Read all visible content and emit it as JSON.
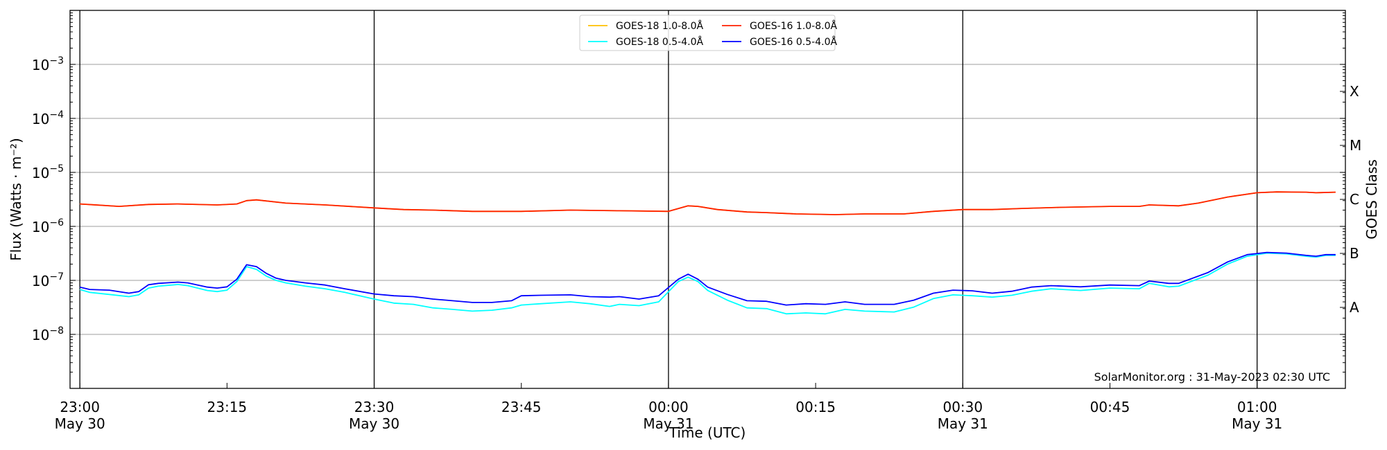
{
  "chart_data": {
    "type": "line",
    "title": "",
    "xlabel": "Time (UTC)",
    "ylabel": "Flux (Watts · m⁻²)",
    "right_ylabel": "GOES Class",
    "yscale": "log",
    "ylim": [
      1e-09,
      0.01
    ],
    "xlim": [
      "22:59",
      "01:09"
    ],
    "grid": "horizontal at decades",
    "legend_position": "top-center",
    "watermark": "SolarMonitor.org : 31-May-2023 02:30 UTC",
    "y_ticks": [
      {
        "exp": -3,
        "label": "10",
        "sup": "−3"
      },
      {
        "exp": -4,
        "label": "10",
        "sup": "−4"
      },
      {
        "exp": -5,
        "label": "10",
        "sup": "−5"
      },
      {
        "exp": -6,
        "label": "10",
        "sup": "−6"
      },
      {
        "exp": -7,
        "label": "10",
        "sup": "−7"
      },
      {
        "exp": -8,
        "label": "10",
        "sup": "−8"
      }
    ],
    "class_ticks": [
      {
        "label": "X",
        "flux_exp": -3.5
      },
      {
        "label": "M",
        "flux_exp": -4.5
      },
      {
        "label": "C",
        "flux_exp": -5.5
      },
      {
        "label": "B",
        "flux_exp": -6.5
      },
      {
        "label": "A",
        "flux_exp": -7.5
      }
    ],
    "x_ticks": [
      {
        "time": "23:00",
        "label": "23:00",
        "date": "May 30",
        "vline": true
      },
      {
        "time": "23:15",
        "label": "23:15",
        "date": "",
        "vline": false
      },
      {
        "time": "23:30",
        "label": "23:30",
        "date": "May 30",
        "vline": true
      },
      {
        "time": "23:45",
        "label": "23:45",
        "date": "",
        "vline": false
      },
      {
        "time": "00:00",
        "label": "00:00",
        "date": "May 31",
        "vline": true
      },
      {
        "time": "00:15",
        "label": "00:15",
        "date": "",
        "vline": false
      },
      {
        "time": "00:30",
        "label": "00:30",
        "date": "May 31",
        "vline": true
      },
      {
        "time": "00:45",
        "label": "00:45",
        "date": "",
        "vline": false
      },
      {
        "time": "01:00",
        "label": "01:00",
        "date": "May 31",
        "vline": true
      }
    ],
    "series": [
      {
        "name": "GOES-18 1.0-8.0Å",
        "color": "#ffc000",
        "x": [
          "23:00",
          "23:04",
          "23:07",
          "23:10",
          "23:14",
          "23:16",
          "23:17",
          "23:18",
          "23:21",
          "23:25",
          "23:30",
          "23:33",
          "23:36",
          "23:40",
          "23:45",
          "23:50",
          "23:55",
          "00:00",
          "00:02",
          "00:03",
          "00:05",
          "00:08",
          "00:10",
          "00:13",
          "00:17",
          "00:20",
          "00:24",
          "00:27",
          "00:30",
          "00:33",
          "00:36",
          "00:40",
          "00:45",
          "00:48",
          "00:49",
          "00:52",
          "00:54",
          "00:57",
          "01:00",
          "01:02",
          "01:05",
          "01:06",
          "01:08"
        ],
        "y": [
          2.6e-06,
          2.35e-06,
          2.55e-06,
          2.6e-06,
          2.5e-06,
          2.6e-06,
          3e-06,
          3.1e-06,
          2.7e-06,
          2.5e-06,
          2.2e-06,
          2.05e-06,
          2e-06,
          1.9e-06,
          1.9e-06,
          2e-06,
          1.95e-06,
          1.9e-06,
          2.4e-06,
          2.35e-06,
          2.05e-06,
          1.85e-06,
          1.8e-06,
          1.7e-06,
          1.65e-06,
          1.7e-06,
          1.7e-06,
          1.9e-06,
          2.05e-06,
          2.05e-06,
          2.15e-06,
          2.25e-06,
          2.35e-06,
          2.35e-06,
          2.5e-06,
          2.4e-06,
          2.7e-06,
          3.5e-06,
          4.2e-06,
          4.35e-06,
          4.3e-06,
          4.2e-06,
          4.3e-06
        ]
      },
      {
        "name": "GOES-16 1.0-8.0Å",
        "color": "#ff2000",
        "x": [
          "23:00",
          "23:04",
          "23:07",
          "23:10",
          "23:14",
          "23:16",
          "23:17",
          "23:18",
          "23:21",
          "23:25",
          "23:30",
          "23:33",
          "23:36",
          "23:40",
          "23:45",
          "23:50",
          "23:55",
          "00:00",
          "00:02",
          "00:03",
          "00:05",
          "00:08",
          "00:10",
          "00:13",
          "00:17",
          "00:20",
          "00:24",
          "00:27",
          "00:30",
          "00:33",
          "00:36",
          "00:40",
          "00:45",
          "00:48",
          "00:49",
          "00:52",
          "00:54",
          "00:57",
          "01:00",
          "01:02",
          "01:05",
          "01:06",
          "01:08"
        ],
        "y": [
          2.6e-06,
          2.35e-06,
          2.55e-06,
          2.6e-06,
          2.5e-06,
          2.6e-06,
          3e-06,
          3.1e-06,
          2.7e-06,
          2.5e-06,
          2.2e-06,
          2.05e-06,
          2e-06,
          1.9e-06,
          1.9e-06,
          2e-06,
          1.95e-06,
          1.9e-06,
          2.4e-06,
          2.35e-06,
          2.05e-06,
          1.85e-06,
          1.8e-06,
          1.7e-06,
          1.65e-06,
          1.7e-06,
          1.7e-06,
          1.9e-06,
          2.05e-06,
          2.05e-06,
          2.15e-06,
          2.25e-06,
          2.35e-06,
          2.35e-06,
          2.5e-06,
          2.4e-06,
          2.7e-06,
          3.5e-06,
          4.2e-06,
          4.35e-06,
          4.3e-06,
          4.2e-06,
          4.3e-06
        ]
      },
      {
        "name": "GOES-18 0.5-4.0Å",
        "color": "#00ffff",
        "x": [
          "23:00",
          "23:01",
          "23:03",
          "23:05",
          "23:06",
          "23:07",
          "23:08",
          "23:10",
          "23:11",
          "23:13",
          "23:14",
          "23:15",
          "23:16",
          "23:17",
          "23:18",
          "23:19",
          "23:20",
          "23:21",
          "23:23",
          "23:25",
          "23:27",
          "23:30",
          "23:32",
          "23:34",
          "23:36",
          "23:38",
          "23:40",
          "23:42",
          "23:44",
          "23:45",
          "23:47",
          "23:50",
          "23:52",
          "23:54",
          "23:55",
          "23:57",
          "23:59",
          "00:01",
          "00:02",
          "00:03",
          "00:04",
          "00:06",
          "00:08",
          "00:10",
          "00:12",
          "00:14",
          "00:16",
          "00:18",
          "00:20",
          "00:23",
          "00:25",
          "00:27",
          "00:29",
          "00:31",
          "00:33",
          "00:35",
          "00:37",
          "00:39",
          "00:42",
          "00:45",
          "00:48",
          "00:49",
          "00:51",
          "00:52",
          "00:55",
          "00:57",
          "00:59",
          "01:01",
          "01:03",
          "01:05",
          "01:06",
          "01:07",
          "01:08"
        ],
        "y": [
          6.8e-08,
          6e-08,
          5.5e-08,
          5e-08,
          5.4e-08,
          7.2e-08,
          7.8e-08,
          8.4e-08,
          8e-08,
          6.5e-08,
          6.2e-08,
          6.6e-08,
          9.5e-08,
          1.8e-07,
          1.6e-07,
          1.2e-07,
          1e-07,
          9e-08,
          7.8e-08,
          7e-08,
          6e-08,
          4.5e-08,
          3.8e-08,
          3.6e-08,
          3.1e-08,
          2.9e-08,
          2.7e-08,
          2.8e-08,
          3.1e-08,
          3.5e-08,
          3.7e-08,
          4e-08,
          3.7e-08,
          3.3e-08,
          3.6e-08,
          3.4e-08,
          4e-08,
          9.5e-08,
          1.15e-07,
          9.5e-08,
          6.5e-08,
          4.3e-08,
          3.1e-08,
          3e-08,
          2.4e-08,
          2.5e-08,
          2.4e-08,
          2.9e-08,
          2.7e-08,
          2.6e-08,
          3.2e-08,
          4.6e-08,
          5.4e-08,
          5.2e-08,
          4.9e-08,
          5.3e-08,
          6.3e-08,
          7e-08,
          6.5e-08,
          7.2e-08,
          7e-08,
          8.8e-08,
          7.6e-08,
          7.8e-08,
          1.25e-07,
          2e-07,
          2.8e-07,
          3.2e-07,
          3.1e-07,
          2.8e-07,
          2.7e-07,
          2.9e-07,
          2.9e-07
        ]
      },
      {
        "name": "GOES-16 0.5-4.0Å",
        "color": "#0000ff",
        "x": [
          "23:00",
          "23:01",
          "23:03",
          "23:05",
          "23:06",
          "23:07",
          "23:08",
          "23:10",
          "23:11",
          "23:13",
          "23:14",
          "23:15",
          "23:16",
          "23:17",
          "23:18",
          "23:19",
          "23:20",
          "23:21",
          "23:23",
          "23:25",
          "23:27",
          "23:30",
          "23:32",
          "23:34",
          "23:36",
          "23:38",
          "23:40",
          "23:42",
          "23:44",
          "23:45",
          "23:47",
          "23:50",
          "23:52",
          "23:54",
          "23:55",
          "23:57",
          "23:59",
          "00:01",
          "00:02",
          "00:03",
          "00:04",
          "00:06",
          "00:08",
          "00:10",
          "00:12",
          "00:14",
          "00:16",
          "00:18",
          "00:20",
          "00:23",
          "00:25",
          "00:27",
          "00:29",
          "00:31",
          "00:33",
          "00:35",
          "00:37",
          "00:39",
          "00:42",
          "00:45",
          "00:48",
          "00:49",
          "00:51",
          "00:52",
          "00:55",
          "00:57",
          "00:59",
          "01:01",
          "01:03",
          "01:05",
          "01:06",
          "01:07",
          "01:08"
        ],
        "y": [
          7.5e-08,
          6.8e-08,
          6.6e-08,
          5.8e-08,
          6.2e-08,
          8.3e-08,
          8.8e-08,
          9.3e-08,
          9e-08,
          7.5e-08,
          7.2e-08,
          7.6e-08,
          1.05e-07,
          1.95e-07,
          1.8e-07,
          1.35e-07,
          1.1e-07,
          1e-07,
          9e-08,
          8.2e-08,
          7e-08,
          5.6e-08,
          5.2e-08,
          5e-08,
          4.5e-08,
          4.2e-08,
          3.9e-08,
          3.9e-08,
          4.2e-08,
          5.2e-08,
          5.3e-08,
          5.4e-08,
          5e-08,
          4.9e-08,
          5e-08,
          4.5e-08,
          5.2e-08,
          1.05e-07,
          1.3e-07,
          1.05e-07,
          7.5e-08,
          5.5e-08,
          4.2e-08,
          4.1e-08,
          3.5e-08,
          3.7e-08,
          3.6e-08,
          4e-08,
          3.6e-08,
          3.6e-08,
          4.3e-08,
          5.8e-08,
          6.6e-08,
          6.4e-08,
          5.8e-08,
          6.3e-08,
          7.5e-08,
          8e-08,
          7.6e-08,
          8.2e-08,
          8e-08,
          9.7e-08,
          8.8e-08,
          8.8e-08,
          1.4e-07,
          2.2e-07,
          3e-07,
          3.3e-07,
          3.2e-07,
          2.9e-07,
          2.8e-07,
          3e-07,
          3e-07
        ]
      }
    ],
    "legend_order": [
      0,
      2,
      1,
      3
    ]
  }
}
